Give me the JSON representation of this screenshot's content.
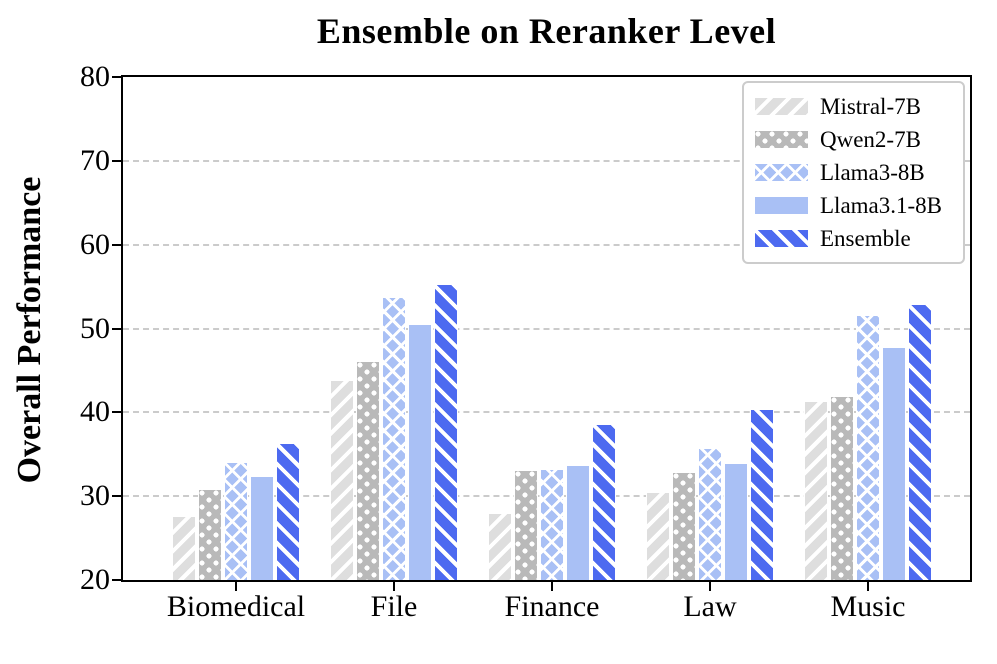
{
  "title": "Ensemble on Reranker Level",
  "y_axis": {
    "label": "Overall Performance",
    "ticks": [
      "20",
      "30",
      "40",
      "50",
      "60",
      "70",
      "80"
    ]
  },
  "x_axis": {
    "categories": [
      "Biomedical",
      "File",
      "Finance",
      "Law",
      "Music"
    ]
  },
  "legend": {
    "items": [
      "Mistral-7B",
      "Qwen2-7B",
      "Llama3-8B",
      "Llama3.1-8B",
      "Ensemble"
    ]
  },
  "chart_data": {
    "type": "bar",
    "title": "Ensemble on Reranker Level",
    "ylabel": "Overall Performance",
    "xlabel": "",
    "ylim": [
      20,
      80
    ],
    "yticks": [
      20,
      30,
      40,
      50,
      60,
      70,
      80
    ],
    "grid": "horizontal-dashed",
    "grid_color": "#cbcbcb",
    "legend_position": "upper-right",
    "categories": [
      "Biomedical",
      "File",
      "Finance",
      "Law",
      "Music"
    ],
    "series": [
      {
        "name": "Mistral-7B",
        "color": "#dedede",
        "hatch": "diagonal-forward",
        "values": [
          27.6,
          43.9,
          28.0,
          30.5,
          41.4
        ]
      },
      {
        "name": "Qwen2-7B",
        "color": "#b9b9b9",
        "hatch": "dots",
        "values": [
          30.8,
          46.1,
          33.1,
          32.9,
          41.9
        ]
      },
      {
        "name": "Llama3-8B",
        "color": "#a9c0f5",
        "hatch": "crosshatch",
        "values": [
          34.1,
          53.8,
          33.2,
          35.7,
          51.6
        ]
      },
      {
        "name": "Llama3.1-8B",
        "color": "#a9c0f5",
        "hatch": "solid",
        "values": [
          32.4,
          50.5,
          33.7,
          34.0,
          47.8
        ]
      },
      {
        "name": "Ensemble",
        "color": "#4d6af0",
        "hatch": "diagonal-backward",
        "values": [
          36.4,
          55.3,
          38.6,
          40.4,
          52.9
        ]
      }
    ]
  }
}
